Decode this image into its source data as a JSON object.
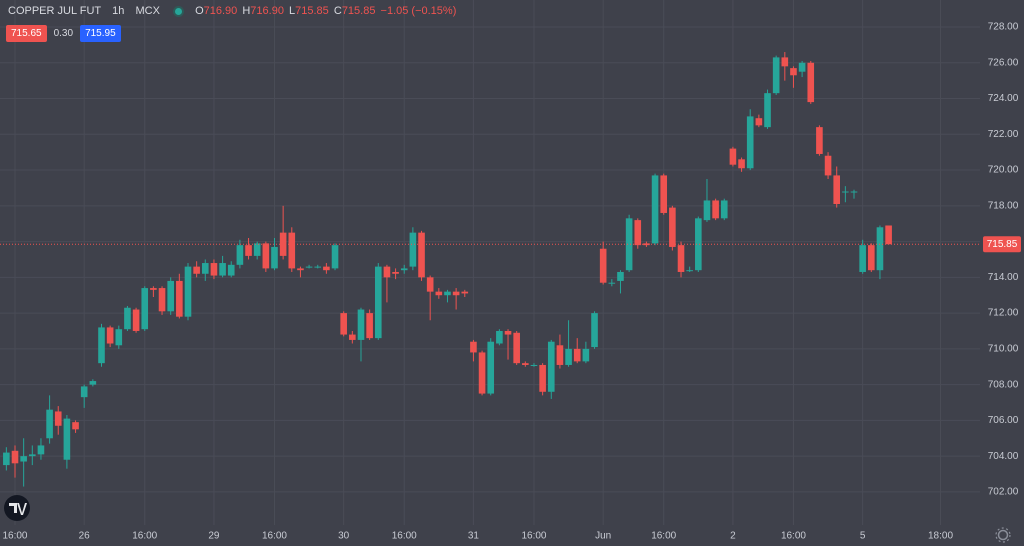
{
  "chart_data": {
    "type": "candlestick",
    "symbol": "COPPER JUL FUT",
    "interval": "1h",
    "exchange": "MCX",
    "ohlc_legend": {
      "o_key": "O",
      "o": "716.90",
      "h_key": "H",
      "h": "716.90",
      "l_key": "L",
      "l": "715.85",
      "c_key": "C",
      "c": "715.85",
      "change": "−1.05 (−0.15%)"
    },
    "bid": "715.65",
    "spread": "0.30",
    "ask": "715.95",
    "up_color": "#26a69a",
    "down_color": "#ef5350",
    "grid": true,
    "last_price": 715.85,
    "open": [
      703.5,
      704.3,
      703.7,
      704.0,
      704.1,
      705.0,
      706.5,
      703.8,
      705.9,
      707.3,
      708.0,
      709.2,
      711.2,
      710.2,
      711.1,
      712.2,
      711.1,
      713.4,
      713.4,
      712.1,
      713.8,
      711.8,
      714.6,
      714.2,
      714.8,
      714.1,
      714.1,
      714.7,
      715.8,
      715.2,
      715.9,
      714.5,
      716.5,
      716.5,
      714.5,
      714.6,
      714.6,
      714.6,
      714.5,
      712.0,
      710.8,
      710.5,
      712.0,
      710.6,
      714.6,
      714.3,
      714.4,
      714.6,
      716.5,
      714.0,
      713.2,
      713.0,
      713.2,
      713.2,
      710.4,
      709.8,
      707.5,
      710.3,
      711.0,
      710.9,
      709.2,
      709.1,
      709.1,
      707.6,
      710.2,
      709.1,
      710.0,
      709.3,
      710.1,
      715.6,
      713.7,
      713.8,
      714.4,
      717.2,
      715.9,
      715.9,
      719.7,
      717.9,
      715.8,
      714.4,
      714.4,
      717.2,
      718.3,
      717.3,
      721.2,
      720.6,
      720.1,
      722.9,
      722.4,
      724.3,
      726.3,
      725.7,
      725.5,
      726.0,
      722.4,
      720.8,
      719.7,
      718.8,
      718.8,
      714.3,
      715.8,
      714.4,
      716.9
    ],
    "high": [
      704.5,
      704.6,
      705.0,
      704.6,
      705.0,
      707.4,
      706.8,
      706.3,
      706.0,
      708.0,
      708.3,
      711.4,
      711.3,
      711.3,
      712.4,
      712.3,
      713.5,
      713.5,
      713.5,
      714.0,
      714.2,
      714.8,
      714.9,
      715.0,
      715.0,
      715.2,
      714.9,
      716.1,
      716.2,
      716.0,
      716.0,
      716.2,
      718.0,
      716.8,
      714.6,
      714.7,
      714.7,
      714.8,
      715.9,
      712.1,
      711.0,
      712.3,
      712.2,
      714.8,
      714.7,
      714.5,
      714.7,
      716.8,
      716.6,
      714.1,
      713.4,
      713.3,
      713.4,
      713.3,
      710.5,
      709.9,
      710.6,
      711.1,
      711.1,
      711.0,
      709.3,
      709.2,
      709.2,
      710.5,
      710.8,
      711.6,
      710.6,
      710.4,
      712.1,
      716.0,
      713.9,
      714.4,
      717.5,
      717.3,
      716.0,
      719.8,
      719.8,
      718.0,
      716.0,
      714.6,
      717.4,
      719.5,
      718.4,
      718.4,
      721.3,
      720.7,
      723.4,
      723.1,
      724.5,
      726.4,
      726.6,
      725.8,
      726.1,
      726.1,
      722.5,
      721.0,
      720.2,
      719.1,
      718.9,
      716.1,
      715.9,
      716.9,
      716.9
    ],
    "low": [
      703.2,
      702.8,
      702.3,
      703.5,
      703.8,
      704.7,
      705.2,
      703.3,
      705.3,
      706.7,
      707.9,
      709.0,
      710.1,
      710.0,
      711.0,
      710.9,
      711.0,
      712.9,
      711.9,
      711.9,
      711.7,
      711.6,
      714.0,
      713.8,
      713.9,
      714.0,
      714.0,
      714.5,
      715.0,
      715.0,
      714.3,
      714.4,
      715.0,
      714.3,
      714.0,
      714.5,
      714.5,
      714.2,
      714.4,
      710.7,
      710.3,
      709.3,
      710.5,
      710.5,
      712.6,
      713.9,
      714.2,
      714.4,
      713.8,
      711.6,
      712.8,
      712.6,
      712.2,
      712.9,
      709.3,
      707.4,
      707.4,
      710.2,
      709.4,
      709.1,
      709.0,
      709.0,
      707.4,
      707.2,
      708.9,
      709.0,
      709.2,
      709.2,
      710.0,
      713.6,
      713.5,
      713.1,
      714.3,
      715.6,
      715.7,
      715.8,
      717.5,
      715.5,
      714.0,
      714.3,
      714.3,
      717.1,
      717.2,
      717.2,
      720.2,
      719.9,
      720.0,
      722.4,
      722.3,
      724.2,
      725.0,
      724.6,
      725.2,
      723.7,
      720.8,
      719.5,
      717.9,
      718.2,
      718.4,
      714.2,
      714.3,
      713.9,
      715.85
    ],
    "close": [
      704.2,
      703.6,
      704.0,
      704.1,
      704.6,
      706.6,
      705.7,
      706.1,
      705.5,
      707.9,
      708.2,
      711.2,
      710.3,
      711.1,
      712.3,
      711.0,
      713.4,
      713.3,
      712.1,
      713.8,
      711.8,
      714.6,
      714.2,
      714.8,
      714.1,
      714.8,
      714.7,
      715.8,
      715.2,
      715.9,
      714.5,
      715.7,
      715.2,
      714.5,
      714.4,
      714.6,
      714.6,
      714.4,
      715.8,
      710.8,
      710.5,
      712.2,
      710.6,
      714.6,
      714.0,
      714.2,
      714.5,
      716.5,
      714.0,
      713.2,
      713.0,
      713.2,
      713.0,
      713.1,
      709.8,
      707.5,
      710.4,
      711.0,
      710.8,
      709.2,
      709.1,
      709.1,
      707.6,
      710.4,
      709.1,
      710.0,
      709.3,
      710.0,
      712.0,
      713.7,
      713.7,
      714.3,
      717.3,
      715.8,
      715.8,
      719.7,
      717.6,
      715.7,
      714.3,
      714.4,
      717.3,
      718.3,
      717.3,
      718.3,
      720.3,
      720.1,
      723.0,
      722.5,
      724.3,
      726.3,
      725.8,
      725.3,
      726.0,
      723.8,
      720.9,
      719.7,
      718.1,
      718.8,
      718.8,
      715.8,
      714.4,
      716.8,
      715.85
    ],
    "xlim": [
      -0.734,
      112.566
    ],
    "xticks": [
      {
        "value": 1,
        "label": "16:00"
      },
      {
        "value": 9,
        "label": "26"
      },
      {
        "value": 16,
        "label": "16:00"
      },
      {
        "value": 24,
        "label": "29"
      },
      {
        "value": 31,
        "label": "16:00"
      },
      {
        "value": 39,
        "label": "30"
      },
      {
        "value": 46,
        "label": "16:00"
      },
      {
        "value": 54,
        "label": "31"
      },
      {
        "value": 61,
        "label": "16:00"
      },
      {
        "value": 69,
        "label": "Jun"
      },
      {
        "value": 76,
        "label": "16:00"
      },
      {
        "value": 84,
        "label": "2"
      },
      {
        "value": 91,
        "label": "16:00"
      },
      {
        "value": 99,
        "label": "5"
      },
      {
        "value": 108,
        "label": "18:00"
      }
    ],
    "ylim": [
      700.15,
      729.51
    ],
    "yticks": [
      {
        "value": 702,
        "label": "702.00"
      },
      {
        "value": 704,
        "label": "704.00"
      },
      {
        "value": 706,
        "label": "706.00"
      },
      {
        "value": 708,
        "label": "708.00"
      },
      {
        "value": 710,
        "label": "710.00"
      },
      {
        "value": 712,
        "label": "712.00"
      },
      {
        "value": 714,
        "label": "714.00"
      },
      {
        "value": 716,
        "label": "716.00"
      },
      {
        "value": 718,
        "label": "718.00"
      },
      {
        "value": 720,
        "label": "720.00"
      },
      {
        "value": 722,
        "label": "722.00"
      },
      {
        "value": 724,
        "label": "724.00"
      },
      {
        "value": 726,
        "label": "726.00"
      },
      {
        "value": 728,
        "label": "728.00"
      }
    ]
  }
}
